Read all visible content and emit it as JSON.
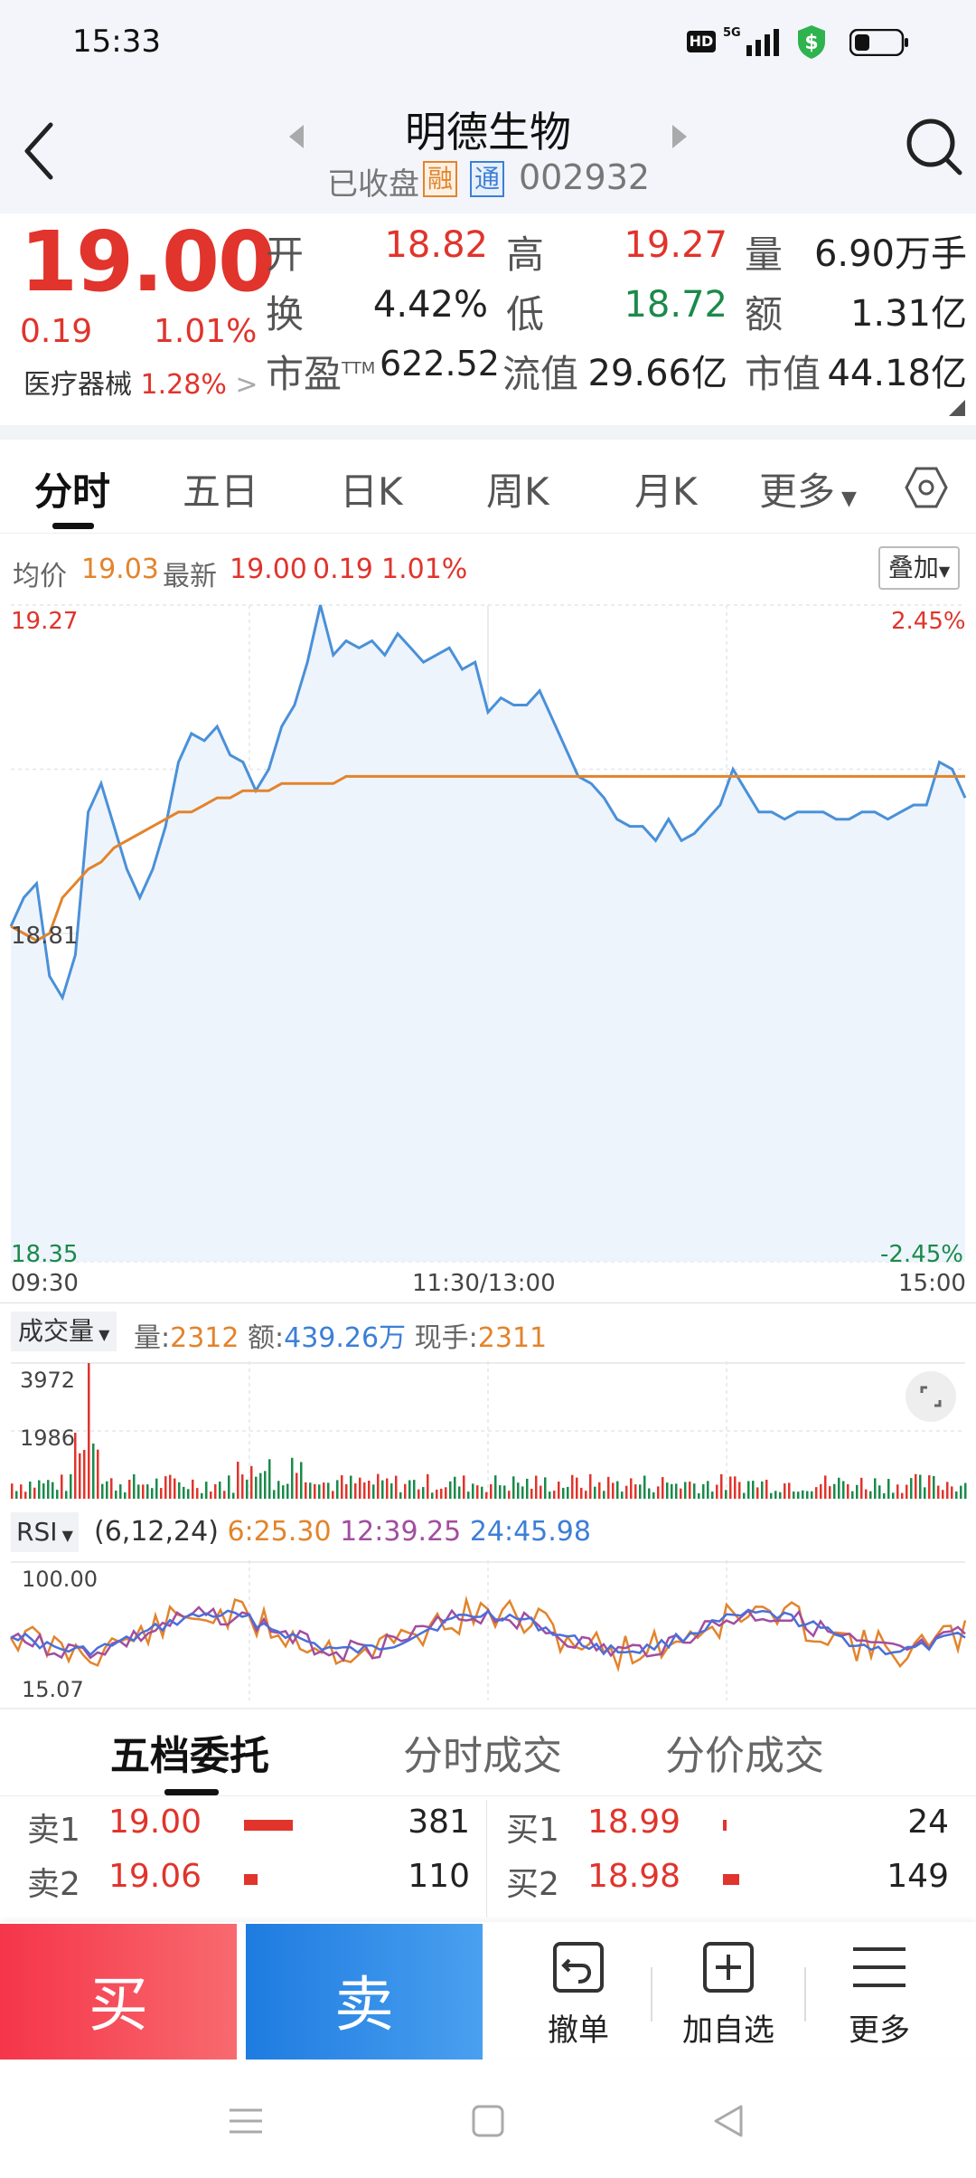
{
  "status_bar": {
    "time": "15:33",
    "hd": "HD",
    "net": "5G"
  },
  "header": {
    "title": "明德生物",
    "status": "已收盘",
    "tag_rong": "融",
    "tag_tong": "通",
    "code": "002932"
  },
  "quote": {
    "price": "19.00",
    "change": "0.19",
    "change_pct": "1.01%",
    "sector": "医疗器械",
    "sector_pct": "1.28%",
    "open_label": "开",
    "open": "18.82",
    "high_label": "高",
    "high": "19.27",
    "vol_label": "量",
    "vol": "6.90万手",
    "turnover_label": "换",
    "turnover": "4.42%",
    "low_label": "低",
    "low": "18.72",
    "amount_label": "额",
    "amount": "1.31亿",
    "pe_label": "市盈",
    "pe_sup": "TTM",
    "pe": "622.52",
    "float_label": "流值",
    "float": "29.66亿",
    "mcap_label": "市值",
    "mcap": "44.18亿"
  },
  "tabs": [
    "分时",
    "五日",
    "日K",
    "周K",
    "月K",
    "更多"
  ],
  "chart_info": {
    "avg_label": "均价",
    "avg": "19.03",
    "latest_label": "最新",
    "latest": "19.00",
    "chg": "0.19",
    "chg_pct": "1.01%",
    "overlay_btn": "叠加"
  },
  "chart_data": {
    "type": "line",
    "y_top": "19.27",
    "y_mid": "18.81",
    "y_bottom": "18.35",
    "pct_top": "2.45%",
    "pct_bottom": "-2.45%",
    "x_labels": [
      "09:30",
      "11:30/13:00",
      "15:00"
    ],
    "ylim": [
      18.35,
      19.27
    ],
    "series": [
      {
        "color": "#4a90d9",
        "values": [
          18.82,
          18.86,
          18.88,
          18.75,
          18.72,
          18.78,
          18.98,
          19.02,
          18.96,
          18.9,
          18.86,
          18.9,
          18.96,
          19.05,
          19.09,
          19.08,
          19.1,
          19.06,
          19.05,
          19.01,
          19.04,
          19.1,
          19.13,
          19.19,
          19.27,
          19.2,
          19.22,
          19.21,
          19.22,
          19.2,
          19.23,
          19.21,
          19.19,
          19.2,
          19.21,
          19.18,
          19.19,
          19.12,
          19.14,
          19.13,
          19.13,
          19.15,
          19.11,
          19.07,
          19.03,
          19.02,
          19.0,
          18.97,
          18.96,
          18.96,
          18.94,
          18.97,
          18.94,
          18.95,
          18.97,
          18.99,
          19.04,
          19.01,
          18.98,
          18.98,
          18.97,
          18.98,
          18.98,
          18.98,
          18.97,
          18.97,
          18.98,
          18.98,
          18.97,
          18.98,
          18.99,
          18.99,
          19.05,
          19.04,
          19.0
        ]
      },
      {
        "color": "#e2842c",
        "values": [
          18.82,
          18.81,
          18.8,
          18.81,
          18.86,
          18.88,
          18.9,
          18.91,
          18.93,
          18.94,
          18.95,
          18.96,
          18.97,
          18.98,
          18.98,
          18.99,
          19.0,
          19.0,
          19.01,
          19.01,
          19.01,
          19.02,
          19.02,
          19.02,
          19.02,
          19.02,
          19.03,
          19.03,
          19.03,
          19.03,
          19.03,
          19.03,
          19.03,
          19.03,
          19.03,
          19.03,
          19.03,
          19.03,
          19.03,
          19.03,
          19.03,
          19.03,
          19.03,
          19.03,
          19.03,
          19.03,
          19.03,
          19.03,
          19.03,
          19.03,
          19.03,
          19.03,
          19.03,
          19.03,
          19.03,
          19.03,
          19.03,
          19.03,
          19.03,
          19.03,
          19.03,
          19.03,
          19.03,
          19.03,
          19.03,
          19.03,
          19.03,
          19.03,
          19.03,
          19.03,
          19.03,
          19.03,
          19.03,
          19.03,
          19.03
        ]
      }
    ]
  },
  "volume": {
    "dropdown": "成交量",
    "vol_label": "量:",
    "vol": "2312",
    "amt_label": "额:",
    "amt": "439.26万",
    "hand_label": "现手:",
    "hand": "2311",
    "y_top": "3972",
    "y_mid": "1986"
  },
  "rsi": {
    "dropdown": "RSI",
    "params": "(6,12,24)",
    "r6": "6:25.30",
    "r12": "12:39.25",
    "r24": "24:45.98",
    "y_top": "100.00",
    "y_bottom": "15.07"
  },
  "order_tabs": [
    "五档委托",
    "分时成交",
    "分价成交"
  ],
  "order_book": {
    "sell": [
      {
        "label": "卖1",
        "price": "19.00",
        "qty": "381",
        "bar": 0.9
      },
      {
        "label": "卖2",
        "price": "19.06",
        "qty": "110",
        "bar": 0.25
      }
    ],
    "buy": [
      {
        "label": "买1",
        "price": "18.99",
        "qty": "24",
        "bar": 0.05
      },
      {
        "label": "买2",
        "price": "18.98",
        "qty": "149",
        "bar": 0.3
      }
    ]
  },
  "actions": {
    "buy": "买",
    "sell": "卖",
    "cancel": "撤单",
    "watch": "加自选",
    "more": "更多"
  }
}
